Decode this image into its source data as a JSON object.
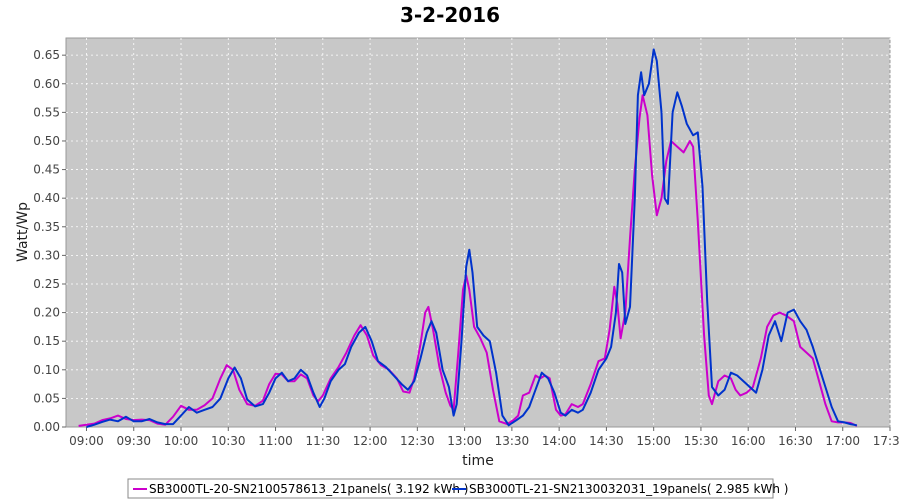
{
  "chart_data": {
    "type": "line",
    "title": "3-2-2016",
    "xlabel": "time",
    "ylabel": "Watt/Wp",
    "xlim": [
      "08:47",
      "17:30"
    ],
    "ylim": [
      0,
      0.68
    ],
    "x_tick_labels": [
      "09:00",
      "09:30",
      "10:00",
      "10:30",
      "11:00",
      "11:30",
      "12:00",
      "12:30",
      "13:00",
      "13:30",
      "14:00",
      "14:30",
      "15:00",
      "15:30",
      "16:00",
      "16:30",
      "17:00",
      "17:30"
    ],
    "y_tick_labels": [
      "0.00",
      "0.05",
      "0.10",
      "0.15",
      "0.20",
      "0.25",
      "0.30",
      "0.35",
      "0.40",
      "0.45",
      "0.50",
      "0.55",
      "0.60",
      "0.65"
    ],
    "grid": true,
    "legend_position": "bottom",
    "background_color": "#c8c8c8",
    "series": [
      {
        "name": "SB3000TL-20-SN2100578613_21panels( 3.192 kWh )",
        "color": "#cc00cc",
        "points": [
          [
            "08:55",
            0.002
          ],
          [
            "09:00",
            0.004
          ],
          [
            "09:05",
            0.006
          ],
          [
            "09:10",
            0.012
          ],
          [
            "09:15",
            0.015
          ],
          [
            "09:20",
            0.02
          ],
          [
            "09:25",
            0.014
          ],
          [
            "09:30",
            0.012
          ],
          [
            "09:35",
            0.013
          ],
          [
            "09:40",
            0.012
          ],
          [
            "09:45",
            0.006
          ],
          [
            "09:50",
            0.004
          ],
          [
            "09:55",
            0.018
          ],
          [
            "10:00",
            0.037
          ],
          [
            "10:05",
            0.03
          ],
          [
            "10:10",
            0.03
          ],
          [
            "10:15",
            0.038
          ],
          [
            "10:20",
            0.05
          ],
          [
            "10:25",
            0.085
          ],
          [
            "10:29",
            0.108
          ],
          [
            "10:33",
            0.1
          ],
          [
            "10:37",
            0.065
          ],
          [
            "10:42",
            0.04
          ],
          [
            "10:47",
            0.037
          ],
          [
            "10:52",
            0.046
          ],
          [
            "10:56",
            0.075
          ],
          [
            "11:00",
            0.093
          ],
          [
            "11:04",
            0.092
          ],
          [
            "11:08",
            0.08
          ],
          [
            "11:12",
            0.08
          ],
          [
            "11:16",
            0.092
          ],
          [
            "11:20",
            0.085
          ],
          [
            "11:24",
            0.055
          ],
          [
            "11:27",
            0.045
          ],
          [
            "11:30",
            0.055
          ],
          [
            "11:35",
            0.085
          ],
          [
            "11:40",
            0.105
          ],
          [
            "11:45",
            0.13
          ],
          [
            "11:50",
            0.16
          ],
          [
            "11:54",
            0.178
          ],
          [
            "11:58",
            0.16
          ],
          [
            "12:02",
            0.125
          ],
          [
            "12:07",
            0.108
          ],
          [
            "12:12",
            0.1
          ],
          [
            "12:17",
            0.085
          ],
          [
            "12:21",
            0.062
          ],
          [
            "12:25",
            0.06
          ],
          [
            "12:28",
            0.085
          ],
          [
            "12:32",
            0.145
          ],
          [
            "12:35",
            0.2
          ],
          [
            "12:37",
            0.21
          ],
          [
            "12:40",
            0.17
          ],
          [
            "12:44",
            0.105
          ],
          [
            "12:48",
            0.06
          ],
          [
            "12:51",
            0.037
          ],
          [
            "12:53",
            0.03
          ],
          [
            "12:56",
            0.13
          ],
          [
            "12:59",
            0.24
          ],
          [
            "13:01",
            0.265
          ],
          [
            "13:03",
            0.24
          ],
          [
            "13:06",
            0.175
          ],
          [
            "13:10",
            0.155
          ],
          [
            "13:14",
            0.13
          ],
          [
            "13:18",
            0.065
          ],
          [
            "13:22",
            0.01
          ],
          [
            "13:27",
            0.005
          ],
          [
            "13:31",
            0.012
          ],
          [
            "13:34",
            0.02
          ],
          [
            "13:37",
            0.055
          ],
          [
            "13:41",
            0.06
          ],
          [
            "13:45",
            0.09
          ],
          [
            "13:48",
            0.085
          ],
          [
            "13:51",
            0.09
          ],
          [
            "13:54",
            0.085
          ],
          [
            "13:58",
            0.03
          ],
          [
            "14:01",
            0.02
          ],
          [
            "14:04",
            0.022
          ],
          [
            "14:08",
            0.04
          ],
          [
            "14:12",
            0.035
          ],
          [
            "14:15",
            0.04
          ],
          [
            "14:20",
            0.075
          ],
          [
            "14:25",
            0.115
          ],
          [
            "14:29",
            0.12
          ],
          [
            "14:32",
            0.17
          ],
          [
            "14:35",
            0.245
          ],
          [
            "14:37",
            0.215
          ],
          [
            "14:39",
            0.155
          ],
          [
            "14:42",
            0.2
          ],
          [
            "14:45",
            0.33
          ],
          [
            "14:48",
            0.45
          ],
          [
            "14:51",
            0.54
          ],
          [
            "14:53",
            0.58
          ],
          [
            "14:56",
            0.545
          ],
          [
            "14:59",
            0.44
          ],
          [
            "15:02",
            0.37
          ],
          [
            "15:05",
            0.4
          ],
          [
            "15:08",
            0.465
          ],
          [
            "15:11",
            0.5
          ],
          [
            "15:15",
            0.49
          ],
          [
            "15:19",
            0.48
          ],
          [
            "15:23",
            0.5
          ],
          [
            "15:25",
            0.49
          ],
          [
            "15:28",
            0.36
          ],
          [
            "15:32",
            0.16
          ],
          [
            "15:35",
            0.055
          ],
          [
            "15:37",
            0.04
          ],
          [
            "15:41",
            0.08
          ],
          [
            "15:45",
            0.09
          ],
          [
            "15:49",
            0.085
          ],
          [
            "15:52",
            0.065
          ],
          [
            "15:55",
            0.055
          ],
          [
            "15:59",
            0.06
          ],
          [
            "16:03",
            0.07
          ],
          [
            "16:08",
            0.12
          ],
          [
            "16:12",
            0.175
          ],
          [
            "16:16",
            0.195
          ],
          [
            "16:20",
            0.2
          ],
          [
            "16:24",
            0.195
          ],
          [
            "16:29",
            0.185
          ],
          [
            "16:33",
            0.14
          ],
          [
            "16:37",
            0.13
          ],
          [
            "16:41",
            0.12
          ],
          [
            "16:45",
            0.08
          ],
          [
            "16:49",
            0.04
          ],
          [
            "16:53",
            0.01
          ],
          [
            "16:57",
            0.008
          ],
          [
            "17:01",
            0.008
          ],
          [
            "17:05",
            0.007
          ],
          [
            "17:09",
            0.002
          ]
        ]
      },
      {
        "name": "SB3000TL-21-SN2130032031_19panels( 2.985 kWh )",
        "color": "#0033cc",
        "points": [
          [
            "09:00",
            0.0
          ],
          [
            "09:05",
            0.004
          ],
          [
            "09:10",
            0.009
          ],
          [
            "09:15",
            0.013
          ],
          [
            "09:20",
            0.01
          ],
          [
            "09:25",
            0.018
          ],
          [
            "09:30",
            0.01
          ],
          [
            "09:35",
            0.01
          ],
          [
            "09:40",
            0.014
          ],
          [
            "09:45",
            0.008
          ],
          [
            "09:50",
            0.005
          ],
          [
            "09:55",
            0.005
          ],
          [
            "10:00",
            0.02
          ],
          [
            "10:05",
            0.035
          ],
          [
            "10:10",
            0.025
          ],
          [
            "10:15",
            0.03
          ],
          [
            "10:20",
            0.035
          ],
          [
            "10:25",
            0.05
          ],
          [
            "10:30",
            0.085
          ],
          [
            "10:34",
            0.104
          ],
          [
            "10:38",
            0.085
          ],
          [
            "10:42",
            0.048
          ],
          [
            "10:47",
            0.036
          ],
          [
            "10:52",
            0.04
          ],
          [
            "10:56",
            0.06
          ],
          [
            "11:00",
            0.085
          ],
          [
            "11:04",
            0.095
          ],
          [
            "11:08",
            0.08
          ],
          [
            "11:12",
            0.085
          ],
          [
            "11:16",
            0.1
          ],
          [
            "11:20",
            0.09
          ],
          [
            "11:24",
            0.06
          ],
          [
            "11:28",
            0.035
          ],
          [
            "11:31",
            0.05
          ],
          [
            "11:35",
            0.08
          ],
          [
            "11:40",
            0.1
          ],
          [
            "11:44",
            0.11
          ],
          [
            "11:48",
            0.14
          ],
          [
            "11:53",
            0.165
          ],
          [
            "11:57",
            0.175
          ],
          [
            "12:01",
            0.15
          ],
          [
            "12:05",
            0.115
          ],
          [
            "12:10",
            0.105
          ],
          [
            "12:15",
            0.09
          ],
          [
            "12:20",
            0.075
          ],
          [
            "12:24",
            0.065
          ],
          [
            "12:28",
            0.08
          ],
          [
            "12:32",
            0.12
          ],
          [
            "12:36",
            0.165
          ],
          [
            "12:39",
            0.185
          ],
          [
            "12:42",
            0.165
          ],
          [
            "12:46",
            0.1
          ],
          [
            "12:50",
            0.07
          ],
          [
            "12:53",
            0.02
          ],
          [
            "12:55",
            0.04
          ],
          [
            "12:58",
            0.15
          ],
          [
            "13:01",
            0.28
          ],
          [
            "13:03",
            0.31
          ],
          [
            "13:05",
            0.27
          ],
          [
            "13:08",
            0.175
          ],
          [
            "13:12",
            0.16
          ],
          [
            "13:16",
            0.15
          ],
          [
            "13:20",
            0.095
          ],
          [
            "13:24",
            0.02
          ],
          [
            "13:28",
            0.003
          ],
          [
            "13:33",
            0.012
          ],
          [
            "13:37",
            0.02
          ],
          [
            "13:41",
            0.035
          ],
          [
            "13:45",
            0.065
          ],
          [
            "13:49",
            0.095
          ],
          [
            "13:53",
            0.085
          ],
          [
            "13:57",
            0.06
          ],
          [
            "14:01",
            0.025
          ],
          [
            "14:04",
            0.02
          ],
          [
            "14:08",
            0.03
          ],
          [
            "14:12",
            0.025
          ],
          [
            "14:15",
            0.03
          ],
          [
            "14:20",
            0.06
          ],
          [
            "14:25",
            0.1
          ],
          [
            "14:30",
            0.12
          ],
          [
            "14:33",
            0.14
          ],
          [
            "14:36",
            0.2
          ],
          [
            "14:38",
            0.285
          ],
          [
            "14:40",
            0.27
          ],
          [
            "14:42",
            0.18
          ],
          [
            "14:45",
            0.21
          ],
          [
            "14:48",
            0.4
          ],
          [
            "14:50",
            0.58
          ],
          [
            "14:52",
            0.62
          ],
          [
            "14:54",
            0.58
          ],
          [
            "14:57",
            0.6
          ],
          [
            "15:00",
            0.66
          ],
          [
            "15:02",
            0.64
          ],
          [
            "15:05",
            0.55
          ],
          [
            "15:07",
            0.4
          ],
          [
            "15:09",
            0.39
          ],
          [
            "15:12",
            0.55
          ],
          [
            "15:15",
            0.585
          ],
          [
            "15:18",
            0.56
          ],
          [
            "15:21",
            0.53
          ],
          [
            "15:25",
            0.51
          ],
          [
            "15:28",
            0.515
          ],
          [
            "15:31",
            0.42
          ],
          [
            "15:34",
            0.22
          ],
          [
            "15:37",
            0.07
          ],
          [
            "15:41",
            0.055
          ],
          [
            "15:45",
            0.065
          ],
          [
            "15:49",
            0.095
          ],
          [
            "15:53",
            0.09
          ],
          [
            "15:57",
            0.08
          ],
          [
            "16:01",
            0.07
          ],
          [
            "16:05",
            0.06
          ],
          [
            "16:09",
            0.1
          ],
          [
            "16:13",
            0.16
          ],
          [
            "16:17",
            0.185
          ],
          [
            "16:21",
            0.15
          ],
          [
            "16:25",
            0.2
          ],
          [
            "16:29",
            0.205
          ],
          [
            "16:33",
            0.185
          ],
          [
            "16:37",
            0.17
          ],
          [
            "16:41",
            0.14
          ],
          [
            "16:45",
            0.105
          ],
          [
            "16:49",
            0.07
          ],
          [
            "16:53",
            0.035
          ],
          [
            "16:57",
            0.01
          ],
          [
            "17:01",
            0.008
          ],
          [
            "17:05",
            0.005
          ],
          [
            "17:09",
            0.003
          ]
        ]
      }
    ]
  }
}
